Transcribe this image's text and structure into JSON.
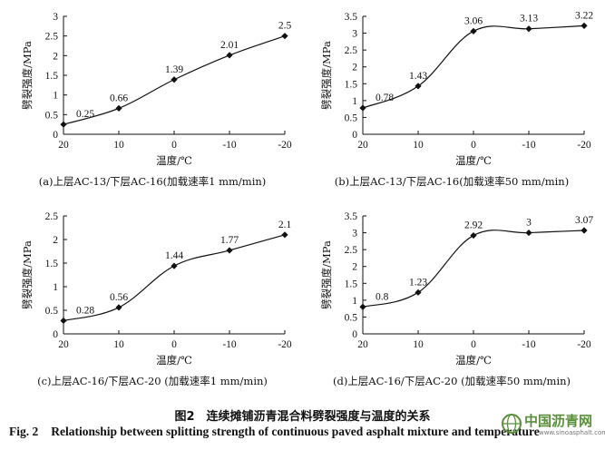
{
  "chart_data": [
    {
      "type": "line",
      "categories": [
        "20",
        "10",
        "0",
        "-10",
        "-20"
      ],
      "values": [
        0.25,
        0.66,
        1.39,
        2.01,
        2.5
      ],
      "value_labels": [
        "0.25",
        "0.66",
        "1.39",
        "2.01",
        "2.5"
      ],
      "ylim": [
        0,
        3
      ],
      "yticks": [
        "0",
        "0.5",
        "1",
        "1.5",
        "2",
        "2.5",
        "3"
      ],
      "ylabel": "劈裂强度/MPa",
      "xlabel": "温度/℃",
      "caption": "(a)上层AC-13/下层AC-16(加载速率1 mm/min)"
    },
    {
      "type": "line",
      "categories": [
        "20",
        "10",
        "0",
        "-10",
        "-20"
      ],
      "values": [
        0.78,
        1.43,
        3.06,
        3.13,
        3.22
      ],
      "value_labels": [
        "0.78",
        "1.43",
        "3.06",
        "3.13",
        "3.22"
      ],
      "ylim": [
        0,
        3.5
      ],
      "yticks": [
        "0",
        "0.5",
        "1",
        "1.5",
        "2",
        "2.5",
        "3",
        "3.5"
      ],
      "ylabel": "劈裂强度/MPa",
      "xlabel": "温度/℃",
      "caption": "(b)上层AC-13/下层AC-16(加载速率50 mm/min)"
    },
    {
      "type": "line",
      "categories": [
        "20",
        "10",
        "0",
        "-10",
        "-20"
      ],
      "values": [
        0.28,
        0.56,
        1.44,
        1.77,
        2.1
      ],
      "value_labels": [
        "0.28",
        "0.56",
        "1.44",
        "1.77",
        "2.1"
      ],
      "ylim": [
        0,
        2.5
      ],
      "yticks": [
        "0",
        "0.5",
        "1",
        "1.5",
        "2",
        "2.5"
      ],
      "ylabel": "劈裂强度/MPa",
      "xlabel": "温度/℃",
      "caption": "(c)上层AC-16/下层AC-20 (加载速率1 mm/min)"
    },
    {
      "type": "line",
      "categories": [
        "20",
        "10",
        "0",
        "-10",
        "-20"
      ],
      "values": [
        0.8,
        1.23,
        2.92,
        3,
        3.07
      ],
      "value_labels": [
        "0.8",
        "1.23",
        "2.92",
        "3",
        "3.07"
      ],
      "ylim": [
        0,
        3.5
      ],
      "yticks": [
        "0",
        "0.5",
        "1",
        "1.5",
        "2",
        "2.5",
        "3",
        "3.5"
      ],
      "ylabel": "劈裂强度/MPa",
      "xlabel": "温度/℃",
      "caption": "(d)上层AC-16/下层AC-20 (加载速率50 mm/min)"
    }
  ],
  "figure": {
    "caption_cn": "图2　连续摊铺沥青混合料劈裂强度与温度的关系",
    "number_en": "Fig. 2",
    "caption_en": "Relationship between splitting strength of continuous paved asphalt mixture and temperature"
  },
  "watermark": {
    "text": "中国沥青网",
    "url": "www.sinoasphalt.com"
  },
  "colors": {
    "line": "#111111",
    "watermark_green": "#5a8f3a"
  }
}
